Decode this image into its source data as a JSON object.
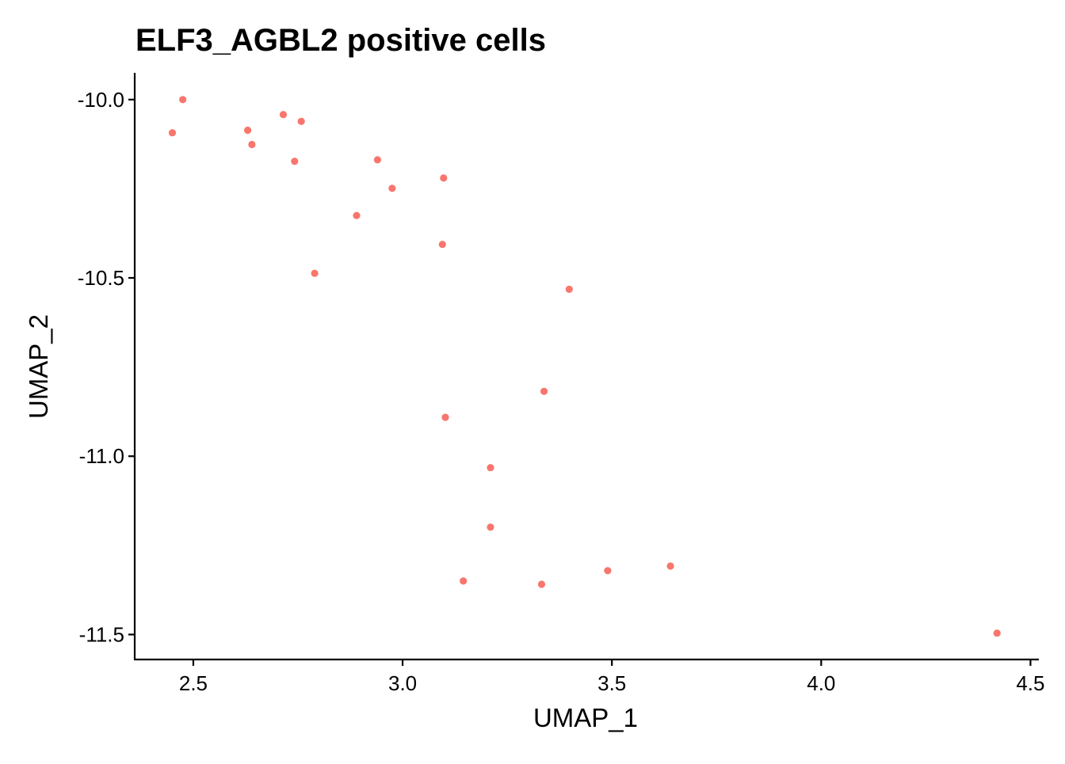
{
  "chart_data": {
    "type": "scatter",
    "title": "ELF3_AGBL2 positive cells",
    "xlabel": "UMAP_1",
    "ylabel": "UMAP_2",
    "xlim": [
      2.36,
      4.52
    ],
    "ylim": [
      -11.57,
      -9.925
    ],
    "xticks": [
      2.5,
      3.0,
      3.5,
      4.0,
      4.5
    ],
    "xtick_labels": [
      "2.5",
      "3.0",
      "3.5",
      "4.0",
      "4.5"
    ],
    "yticks": [
      -10.0,
      -10.5,
      -11.0,
      -11.5
    ],
    "ytick_labels": [
      "-10.0",
      "-10.5",
      "-11.0",
      "-11.5"
    ],
    "grid": false,
    "legend": "none",
    "point_color": "#F8766D",
    "points": [
      {
        "x": 2.475,
        "y": -10.0
      },
      {
        "x": 2.45,
        "y": -10.093
      },
      {
        "x": 2.63,
        "y": -10.086
      },
      {
        "x": 2.64,
        "y": -10.126
      },
      {
        "x": 2.715,
        "y": -10.042
      },
      {
        "x": 2.758,
        "y": -10.061
      },
      {
        "x": 2.742,
        "y": -10.173
      },
      {
        "x": 2.94,
        "y": -10.169
      },
      {
        "x": 2.975,
        "y": -10.249
      },
      {
        "x": 3.098,
        "y": -10.22
      },
      {
        "x": 2.89,
        "y": -10.325
      },
      {
        "x": 3.095,
        "y": -10.406
      },
      {
        "x": 2.79,
        "y": -10.487
      },
      {
        "x": 3.398,
        "y": -10.532
      },
      {
        "x": 3.338,
        "y": -10.818
      },
      {
        "x": 3.102,
        "y": -10.891
      },
      {
        "x": 3.21,
        "y": -11.032
      },
      {
        "x": 3.21,
        "y": -11.199
      },
      {
        "x": 3.145,
        "y": -11.35
      },
      {
        "x": 3.332,
        "y": -11.359
      },
      {
        "x": 3.49,
        "y": -11.321
      },
      {
        "x": 3.64,
        "y": -11.308
      },
      {
        "x": 4.42,
        "y": -11.496
      }
    ]
  }
}
